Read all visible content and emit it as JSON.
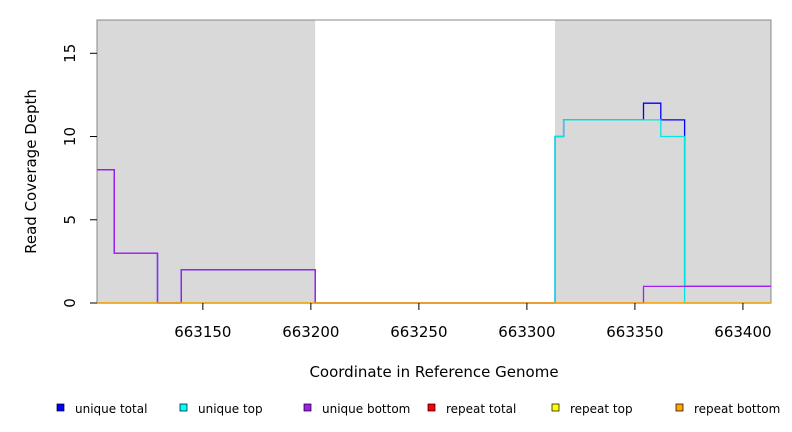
{
  "chart_data": {
    "type": "line",
    "xlabel": "Coordinate in Reference Genome",
    "ylabel": "Read Coverage Depth",
    "xlim": [
      663101,
      663413
    ],
    "ylim": [
      0,
      17
    ],
    "x_ticks": [
      663150,
      663200,
      663250,
      663300,
      663350,
      663400
    ],
    "y_ticks": [
      0,
      5,
      10,
      15
    ],
    "shaded_regions": [
      {
        "from": 663101,
        "to": 663202
      },
      {
        "from": 663313,
        "to": 663413
      }
    ],
    "series": [
      {
        "name": "unique total",
        "color": "#0000ff",
        "points": [
          [
            663101,
            8
          ],
          [
            663109,
            8
          ],
          [
            663109,
            3
          ],
          [
            663129,
            3
          ],
          [
            663129,
            0
          ],
          [
            663140,
            0
          ],
          [
            663140,
            2
          ],
          [
            663202,
            2
          ],
          [
            663202,
            0
          ],
          [
            663313,
            0
          ],
          [
            663313,
            10
          ],
          [
            663317,
            10
          ],
          [
            663317,
            11
          ],
          [
            663354,
            11
          ],
          [
            663354,
            12
          ],
          [
            663362,
            12
          ],
          [
            663362,
            11
          ],
          [
            663373,
            11
          ],
          [
            663373,
            1
          ],
          [
            663413,
            1
          ]
        ]
      },
      {
        "name": "unique top",
        "color": "#00e5e5",
        "points": [
          [
            663101,
            0
          ],
          [
            663313,
            0
          ],
          [
            663313,
            10
          ],
          [
            663317,
            10
          ],
          [
            663317,
            11
          ],
          [
            663362,
            11
          ],
          [
            663362,
            10
          ],
          [
            663373,
            10
          ],
          [
            663373,
            0
          ],
          [
            663413,
            0
          ]
        ]
      },
      {
        "name": "unique bottom",
        "color": "#a020f0",
        "points": [
          [
            663101,
            8
          ],
          [
            663109,
            8
          ],
          [
            663109,
            3
          ],
          [
            663129,
            3
          ],
          [
            663129,
            0
          ],
          [
            663140,
            0
          ],
          [
            663140,
            2
          ],
          [
            663202,
            2
          ],
          [
            663202,
            0
          ],
          [
            663354,
            0
          ],
          [
            663354,
            1
          ],
          [
            663373,
            1
          ],
          [
            663373,
            1
          ],
          [
            663413,
            1
          ]
        ]
      },
      {
        "name": "repeat total",
        "color": "#ff0000",
        "points": [
          [
            663101,
            0
          ],
          [
            663413,
            0
          ]
        ]
      },
      {
        "name": "repeat top",
        "color": "#ffff00",
        "points": [
          [
            663101,
            0
          ],
          [
            663413,
            0
          ]
        ]
      },
      {
        "name": "repeat bottom",
        "color": "#ffa500",
        "points": [
          [
            663101,
            0
          ],
          [
            663413,
            0
          ]
        ]
      }
    ],
    "legend": [
      {
        "label": "unique total",
        "color": "#0000ff"
      },
      {
        "label": "unique top",
        "color": "#00ffff"
      },
      {
        "label": "unique bottom",
        "color": "#a020f0"
      },
      {
        "label": "repeat total",
        "color": "#ff0000"
      },
      {
        "label": "repeat top",
        "color": "#ffff00"
      },
      {
        "label": "repeat bottom",
        "color": "#ffa500"
      }
    ],
    "legend_placement": "bottom",
    "shade_color": "#d9d9d9"
  }
}
